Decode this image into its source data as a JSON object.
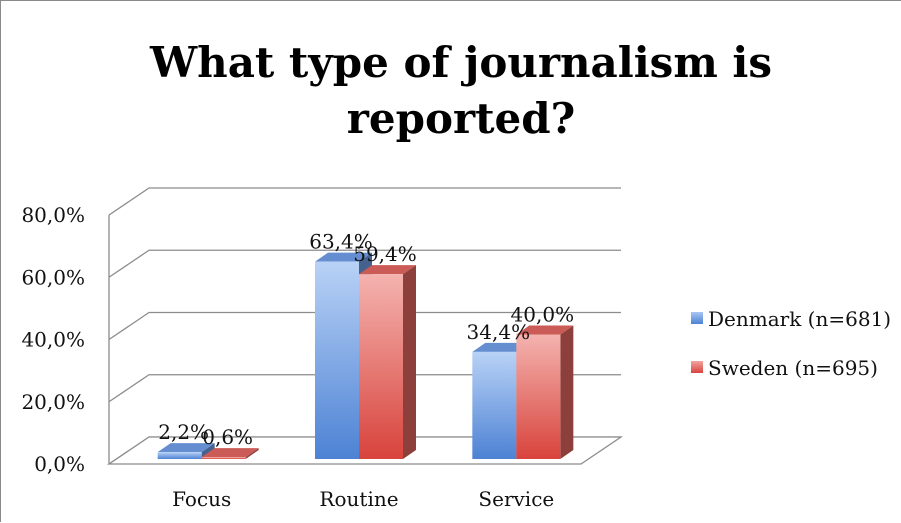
{
  "chart_data": {
    "type": "bar",
    "title_lines": [
      "What type of journalism is",
      "reported?"
    ],
    "categories": [
      "Focus",
      "Routine",
      "Service"
    ],
    "series": [
      {
        "name": "Denmark (n=681)",
        "values": [
          2.2,
          63.4,
          34.4
        ],
        "labels": [
          "2,2%",
          "63,4%",
          "34,4%"
        ],
        "color": "#6f9ee6"
      },
      {
        "name": "Sweden (n=695)",
        "values": [
          0.6,
          59.4,
          40.0
        ],
        "labels": [
          "0,6%",
          "59,4%",
          "40,0%"
        ],
        "color": "#e2655f"
      }
    ],
    "y_ticks": [
      0,
      20,
      40,
      60,
      80
    ],
    "y_tick_labels": [
      "0,0%",
      "20,0%",
      "40,0%",
      "60,0%",
      "80,0%"
    ],
    "ylim": [
      0,
      80
    ],
    "grid": true,
    "style": "3d-clustered-column",
    "legend_position": "right"
  }
}
